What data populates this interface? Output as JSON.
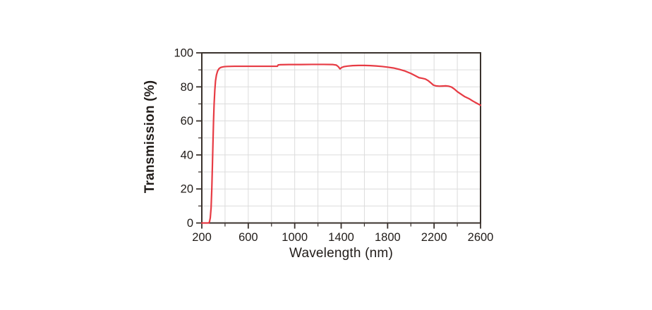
{
  "page": {
    "background_color": "#ffffff"
  },
  "chart_data": {
    "type": "line",
    "title": "",
    "xlabel": "Wavelength (nm)",
    "ylabel": "Transmission (%)",
    "xlim": [
      200,
      2600
    ],
    "ylim": [
      0,
      100
    ],
    "x_major_ticks": [
      200,
      600,
      1000,
      1400,
      1800,
      2200,
      2600
    ],
    "x_minor_step": 200,
    "y_major_ticks": [
      0,
      20,
      40,
      60,
      80,
      100
    ],
    "y_minor_step": 10,
    "grid": {
      "show": true,
      "x_step": 200,
      "y_step": 10,
      "color": "#dcdcdc"
    },
    "legend": "none",
    "colors": {
      "axis_frame": "#3a322d",
      "tick_label": "#211c19",
      "curve": "#e73b44",
      "plot_background": "#ffffff"
    },
    "series": [
      {
        "name": "transmission",
        "color": "#e73b44",
        "points": [
          [
            200,
            0
          ],
          [
            258,
            0
          ],
          [
            266,
            0.6
          ],
          [
            273,
            3
          ],
          [
            280,
            9
          ],
          [
            286,
            20
          ],
          [
            291,
            33
          ],
          [
            296,
            47
          ],
          [
            301,
            60
          ],
          [
            306,
            70
          ],
          [
            312,
            78
          ],
          [
            318,
            83.5
          ],
          [
            326,
            87
          ],
          [
            336,
            89.3
          ],
          [
            348,
            90.7
          ],
          [
            362,
            91.4
          ],
          [
            378,
            91.7
          ],
          [
            395,
            91.9
          ],
          [
            420,
            92
          ],
          [
            480,
            92.1
          ],
          [
            560,
            92.1
          ],
          [
            640,
            92.1
          ],
          [
            720,
            92.1
          ],
          [
            790,
            92.1
          ],
          [
            850,
            92.1
          ],
          [
            858,
            92.9
          ],
          [
            872,
            93
          ],
          [
            950,
            93.1
          ],
          [
            1050,
            93.1
          ],
          [
            1150,
            93.2
          ],
          [
            1250,
            93.2
          ],
          [
            1330,
            93.1
          ],
          [
            1358,
            92.8
          ],
          [
            1375,
            91.9
          ],
          [
            1390,
            90.6
          ],
          [
            1405,
            91.4
          ],
          [
            1425,
            91.9
          ],
          [
            1455,
            92.2
          ],
          [
            1500,
            92.5
          ],
          [
            1550,
            92.6
          ],
          [
            1600,
            92.6
          ],
          [
            1650,
            92.5
          ],
          [
            1700,
            92.3
          ],
          [
            1750,
            92
          ],
          [
            1800,
            91.6
          ],
          [
            1850,
            91.1
          ],
          [
            1900,
            90.3
          ],
          [
            1950,
            89.3
          ],
          [
            2000,
            87.9
          ],
          [
            2040,
            86.5
          ],
          [
            2070,
            85.4
          ],
          [
            2100,
            85
          ],
          [
            2125,
            84.6
          ],
          [
            2150,
            83.6
          ],
          [
            2175,
            82.2
          ],
          [
            2195,
            81
          ],
          [
            2215,
            80.6
          ],
          [
            2245,
            80.4
          ],
          [
            2275,
            80.5
          ],
          [
            2300,
            80.6
          ],
          [
            2325,
            80.4
          ],
          [
            2350,
            79.9
          ],
          [
            2375,
            78.7
          ],
          [
            2400,
            77.2
          ],
          [
            2430,
            75.8
          ],
          [
            2465,
            74.2
          ],
          [
            2500,
            73.1
          ],
          [
            2535,
            71.6
          ],
          [
            2570,
            70.3
          ],
          [
            2600,
            69.2
          ]
        ]
      }
    ]
  }
}
